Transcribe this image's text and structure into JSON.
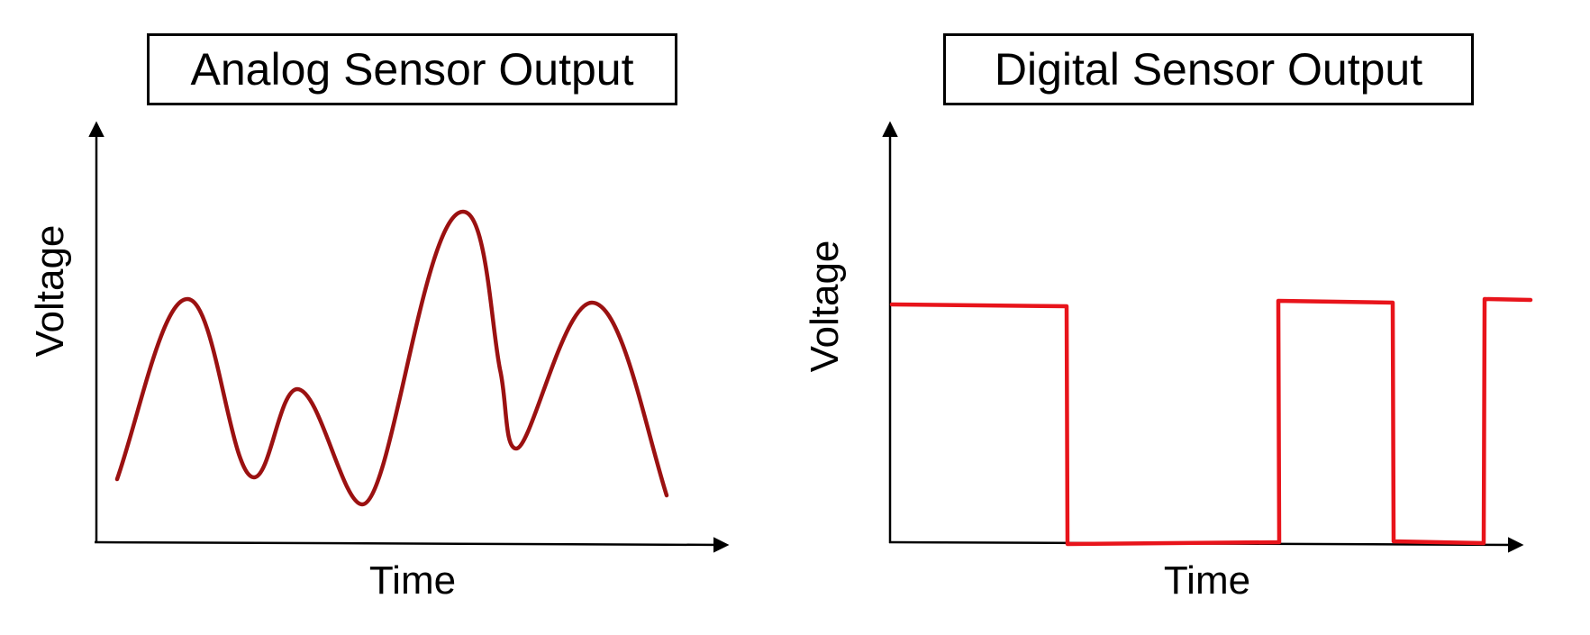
{
  "panels": [
    {
      "title": "Analog Sensor Output",
      "xlabel": "Time",
      "ylabel": "Voltage",
      "colors": {
        "signal": "#9b1111",
        "axes": "#000000"
      }
    },
    {
      "title": "Digital Sensor Output",
      "xlabel": "Time",
      "ylabel": "Voltage",
      "colors": {
        "signal": "#e8141b",
        "axes": "#000000"
      }
    }
  ]
}
